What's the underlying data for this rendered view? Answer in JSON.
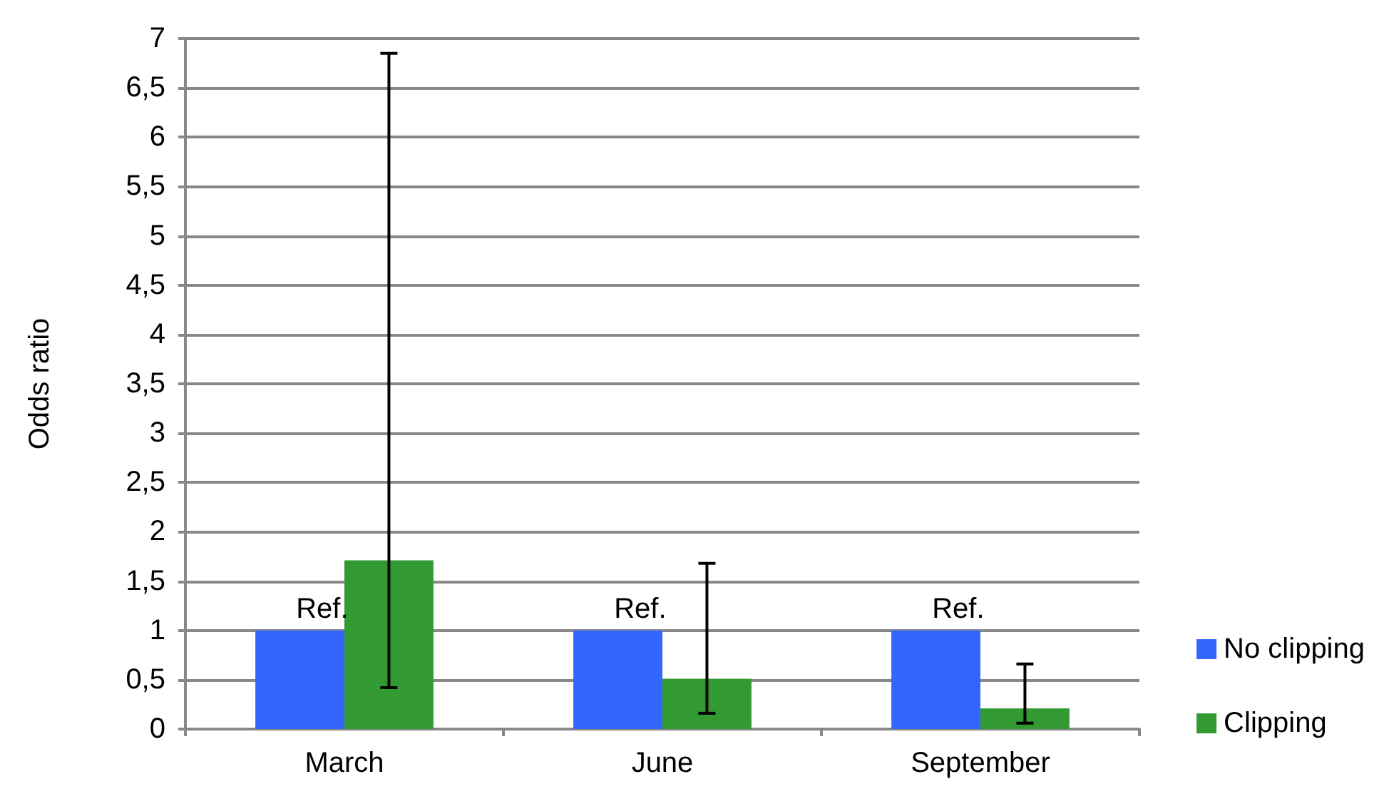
{
  "chart_data": {
    "type": "bar",
    "ylabel": "Odds ratio",
    "categories": [
      "March",
      "June",
      "September"
    ],
    "series": [
      {
        "name": "No clipping",
        "color": "#3366ff",
        "values": [
          1,
          1,
          1
        ],
        "value_labels": [
          "Ref.",
          "Ref.",
          "Ref."
        ]
      },
      {
        "name": "Clipping",
        "color": "#339933",
        "values": [
          1.71,
          0.51,
          0.21
        ],
        "errors": [
          [
            0.42,
            6.85
          ],
          [
            0.16,
            1.68
          ],
          [
            0.06,
            0.66
          ]
        ]
      }
    ],
    "ylim": [
      0,
      7
    ],
    "yticks": [
      0,
      {
        "value": 0.5,
        "label": "0,5"
      },
      1,
      {
        "value": 1.5,
        "label": "1,5"
      },
      2,
      {
        "value": 2.5,
        "label": "2,5"
      },
      3,
      {
        "value": 3.5,
        "label": "3,5"
      },
      4,
      {
        "value": 4.5,
        "label": "4,5"
      },
      5,
      {
        "value": 5.5,
        "label": "5,5"
      },
      6,
      {
        "value": 6.5,
        "label": "6,5"
      },
      7
    ],
    "grid": "y",
    "legend": "right"
  }
}
